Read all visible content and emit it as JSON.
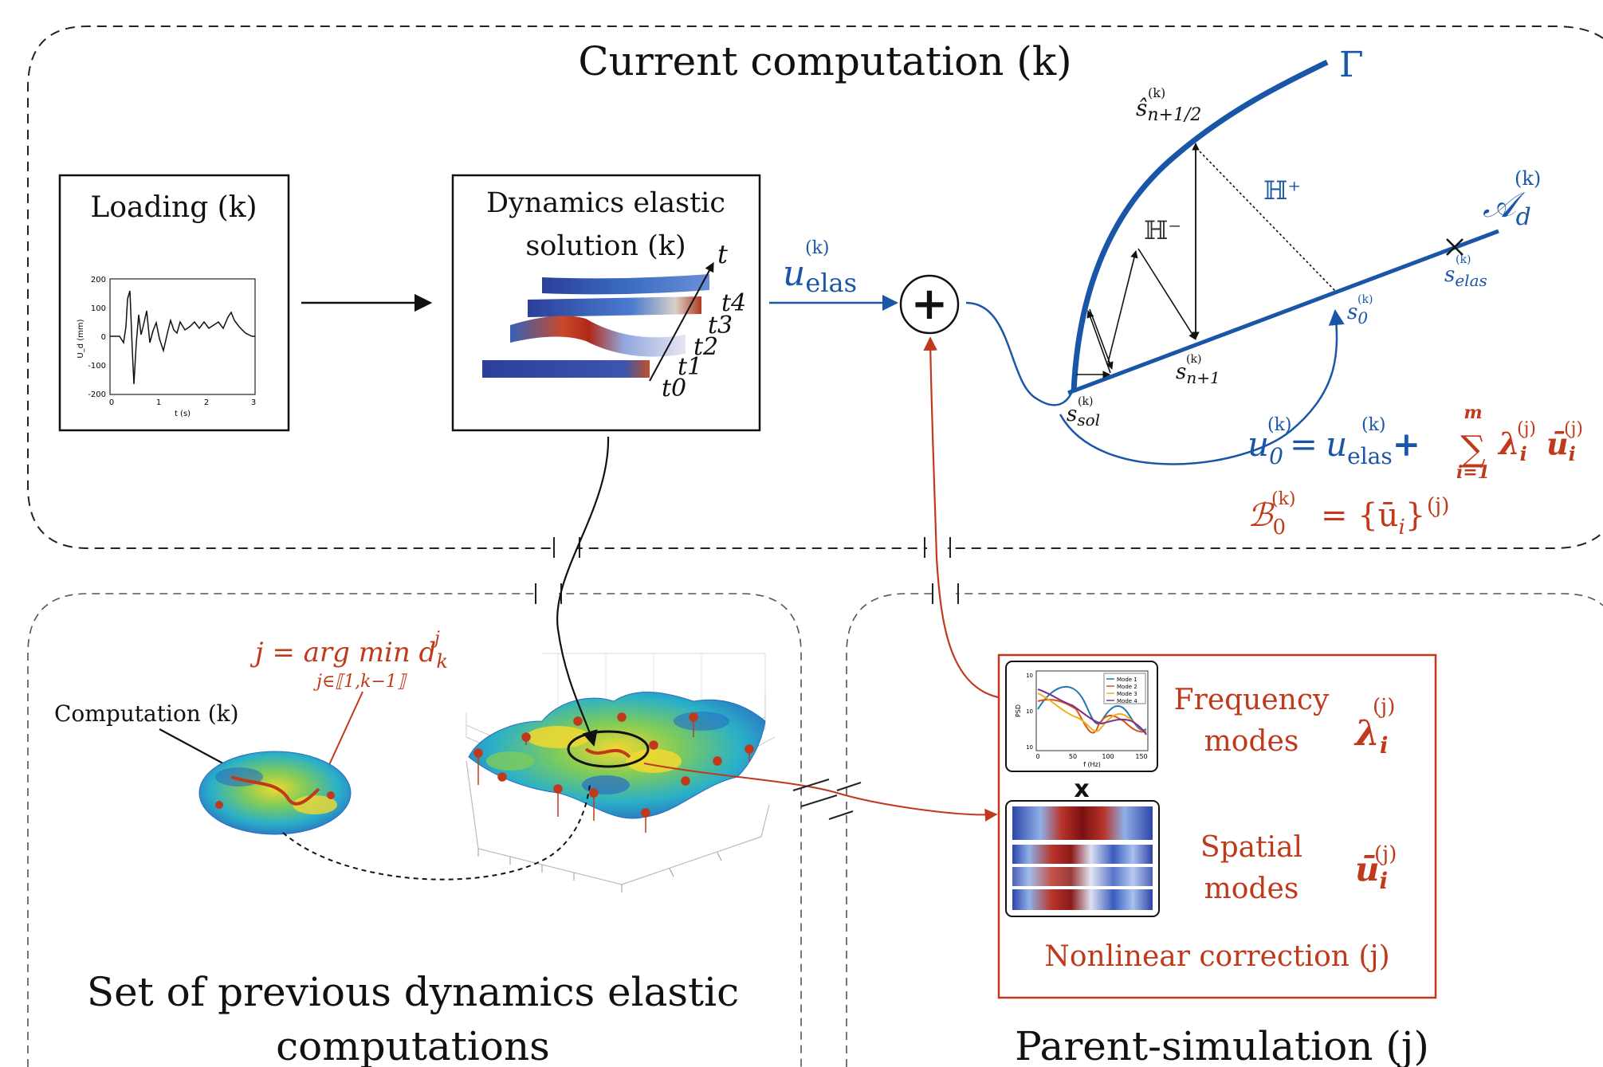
{
  "current": {
    "title": "Current computation (k)",
    "loading_title": "Loading (k)",
    "loading_plot": {
      "ylabel": "U_d (mm)",
      "xlabel": "t (s)",
      "yticks": [
        "200",
        "100",
        "0",
        "-100",
        "-200"
      ],
      "xticks": [
        "0",
        "1",
        "2",
        "3"
      ]
    },
    "dynamics_title_1": "Dynamics elastic",
    "dynamics_title_2": "solution  (k)",
    "time_labels": [
      "t",
      "t4",
      "t3",
      "t2",
      "t1",
      "t0"
    ],
    "u_elas": "u",
    "u_elas_sub": "elas",
    "k_sup": "(k)",
    "plus_symbol": "+"
  },
  "geometry_labels": {
    "gamma": "Γ",
    "s_half": "ŝ",
    "s_half_sub": "n+1/2",
    "h_plus": "ℍ⁺",
    "h_minus": "ℍ⁻",
    "a_d": "𝒜",
    "a_d_sub": "d",
    "s_elas": "s",
    "s_elas_sub": "elas",
    "s_0": "s",
    "s_0_sub": "0",
    "s_n1": "s",
    "s_n1_sub": "n+1",
    "s_sol": "s",
    "s_sol_sub": "sol"
  },
  "formulas": {
    "u0_lhs": "u",
    "u0_sub": "0",
    "equals": "=",
    "u_elas": "u",
    "u_elas_sub": "elas",
    "plus": "+",
    "sum": "∑",
    "sum_top": "m",
    "sum_bottom": "i=1",
    "lambda": "λ",
    "i_sub": "i",
    "j_sup": "(j)",
    "u_bar": "ū",
    "basis_lhs": "ℬ",
    "basis_rhs": "= {ū",
    "basis_close": "}"
  },
  "previous": {
    "title_1": "Set of previous dynamics elastic",
    "title_2": "computations",
    "computation_label": "Computation (k)",
    "argmin_1": "j = arg min d",
    "argmin_j": "j",
    "argmin_k": "k",
    "argmin_2": "j∈⟦1,k−1⟧"
  },
  "parent": {
    "title": "Parent-simulation (j)",
    "frequency_1": "Frequency",
    "frequency_2": "modes",
    "spatial_1": "Spatial",
    "spatial_2": "modes",
    "times": "x",
    "correction": "Nonlinear correction (j)",
    "psd_ylabel": "PSD",
    "psd_xlabel": "f (Hz)",
    "psd_xticks": [
      "0",
      "50",
      "100",
      "150"
    ],
    "psd_legend": [
      "Mode 1",
      "Mode 2",
      "Mode 3",
      "Mode 4"
    ],
    "psd_yticks": [
      "10",
      "10",
      "10"
    ]
  },
  "colors": {
    "blue": "#1a56a8",
    "red": "#c0391b",
    "black": "#111111"
  }
}
